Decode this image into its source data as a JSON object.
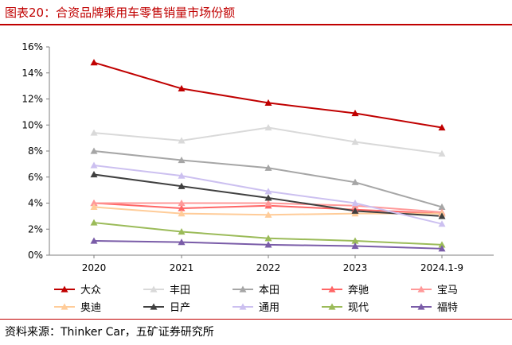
{
  "header": {
    "title": "图表20：合资品牌乘用车零售销量市场份额"
  },
  "source": "资料来源：Thinker Car，五矿证券研究所",
  "chart_data": {
    "type": "line",
    "title": "图表20：合资品牌乘用车零售销量市场份额",
    "xlabel": "",
    "ylabel": "",
    "categories": [
      "2020",
      "2021",
      "2022",
      "2023",
      "2024.1-9"
    ],
    "ylim": [
      0,
      16
    ],
    "yticks": [
      0,
      2,
      4,
      6,
      8,
      10,
      12,
      14,
      16
    ],
    "yticks_labels": [
      "0%",
      "2%",
      "4%",
      "6%",
      "8%",
      "10%",
      "12%",
      "14%",
      "16%"
    ],
    "grid": false,
    "legend_position": "bottom",
    "series": [
      {
        "name": "大众",
        "color": "#c00000",
        "values": [
          14.8,
          12.8,
          11.7,
          10.9,
          9.8
        ]
      },
      {
        "name": "丰田",
        "color": "#d9d9d9",
        "values": [
          9.4,
          8.8,
          9.8,
          8.7,
          7.8
        ]
      },
      {
        "name": "本田",
        "color": "#a6a6a6",
        "values": [
          8.0,
          7.3,
          6.7,
          5.6,
          3.7
        ]
      },
      {
        "name": "奔驰",
        "color": "#ff6666",
        "values": [
          4.0,
          3.6,
          3.8,
          3.5,
          3.2
        ]
      },
      {
        "name": "宝马",
        "color": "#ff9999",
        "values": [
          4.0,
          4.0,
          4.0,
          3.8,
          3.3
        ]
      },
      {
        "name": "奥迪",
        "color": "#ffcc99",
        "values": [
          3.7,
          3.2,
          3.1,
          3.2,
          3.2
        ]
      },
      {
        "name": "日产",
        "color": "#404040",
        "values": [
          6.2,
          5.3,
          4.4,
          3.4,
          3.0
        ]
      },
      {
        "name": "通用",
        "color": "#ccc0f0",
        "values": [
          6.9,
          6.1,
          4.9,
          4.0,
          2.4
        ]
      },
      {
        "name": "现代",
        "color": "#9bbb59",
        "values": [
          2.5,
          1.8,
          1.3,
          1.1,
          0.8
        ]
      },
      {
        "name": "福特",
        "color": "#7a5ca8",
        "values": [
          1.1,
          1.0,
          0.8,
          0.7,
          0.5
        ]
      }
    ]
  }
}
